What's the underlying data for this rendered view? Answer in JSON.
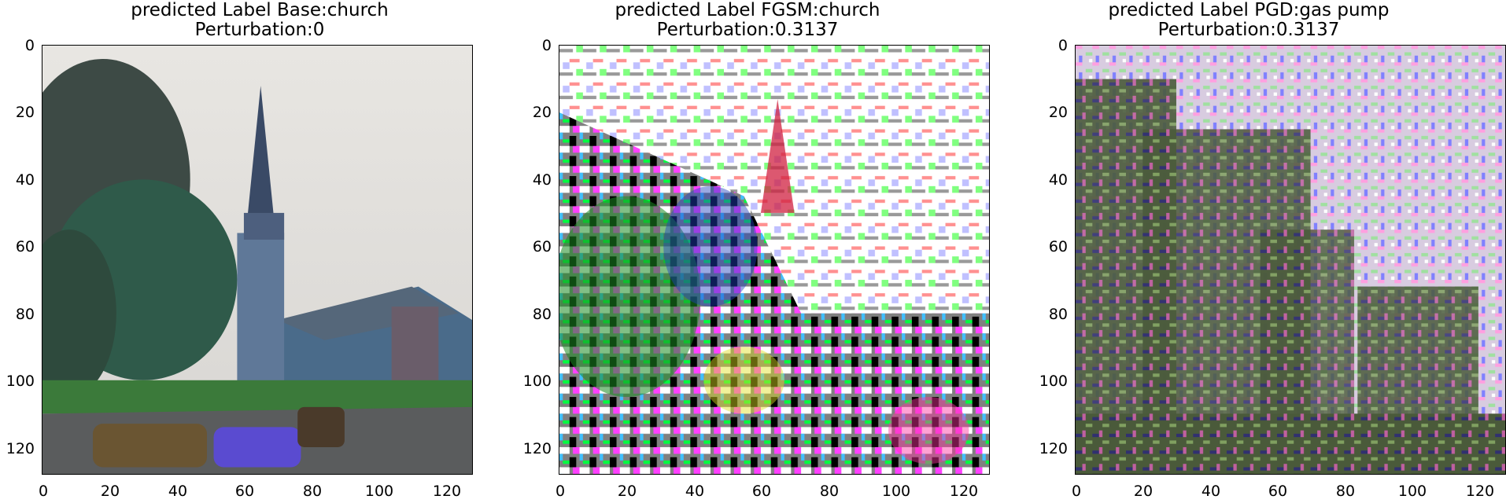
{
  "panels": [
    {
      "title_line1": "predicted Label Base:church",
      "title_line2": "Perturbation:0",
      "image": "church-street-scene",
      "y_ticks": [
        "0",
        "20",
        "40",
        "60",
        "80",
        "100",
        "120"
      ],
      "x_ticks": [
        "0",
        "20",
        "40",
        "60",
        "80",
        "100",
        "120"
      ]
    },
    {
      "title_line1": "predicted Label FGSM:church",
      "title_line2": "Perturbation:0.3137",
      "image": "fgsm-noisy-church",
      "y_ticks": [
        "0",
        "20",
        "40",
        "60",
        "80",
        "100",
        "120"
      ],
      "x_ticks": [
        "0",
        "20",
        "40",
        "60",
        "80",
        "100",
        "120"
      ]
    },
    {
      "title_line1": "predicted Label PGD:gas pump",
      "title_line2": "Perturbation:0.3137",
      "image": "pgd-noisy-church",
      "y_ticks": [
        "0",
        "20",
        "40",
        "60",
        "80",
        "100",
        "120"
      ],
      "x_ticks": [
        "0",
        "20",
        "40",
        "60",
        "80",
        "100",
        "120"
      ]
    }
  ]
}
